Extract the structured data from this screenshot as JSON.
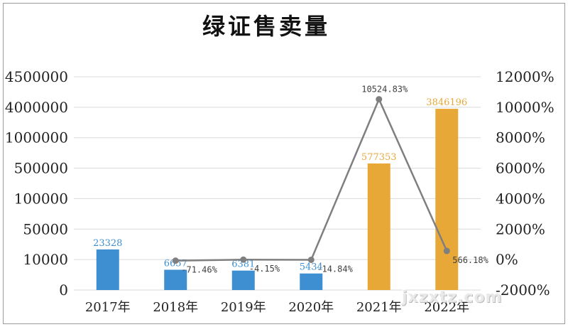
{
  "chart_data": {
    "type": "bar",
    "title": "绿证售卖量",
    "categories": [
      "2017年",
      "2018年",
      "2019年",
      "2020年",
      "2021年",
      "2022年"
    ],
    "series": [
      {
        "values": [
          23328,
          6657,
          6381,
          5434,
          577353,
          3846196
        ],
        "value_labels": [
          "23328",
          "6657",
          "6381",
          "5434",
          "577353",
          "3846196"
        ],
        "colors": [
          "#3d8fd1",
          "#3d8fd1",
          "#3d8fd1",
          "#3d8fd1",
          "#e8a838",
          "#e8a838"
        ],
        "axis": "left"
      },
      {
        "type": "line",
        "axis": "right",
        "x": [
          "2018年",
          "2019年",
          "2020年",
          "2021年",
          "2022年"
        ],
        "values": [
          -71.46,
          -4.15,
          -14.84,
          10524.83,
          566.18
        ],
        "value_labels": [
          "-71.46%",
          "-4.15%",
          "-14.84%",
          "10524.83%",
          "566.18%"
        ],
        "color": "#7f7f7f"
      }
    ],
    "y_left_ticks": [
      "0",
      "10000",
      "50000",
      "100000",
      "500000",
      "1000000",
      "4000000",
      "4500000"
    ],
    "y_left_tick_values": [
      0,
      10000,
      50000,
      100000,
      500000,
      1000000,
      4000000,
      4500000
    ],
    "y_right_ticks": [
      "-2000%",
      "0%",
      "2000%",
      "4000%",
      "6000%",
      "8000%",
      "10000%",
      "12000%"
    ],
    "y_right_range": [
      -2000,
      12000
    ],
    "grid": true,
    "watermark": "jxzxtz.com"
  }
}
